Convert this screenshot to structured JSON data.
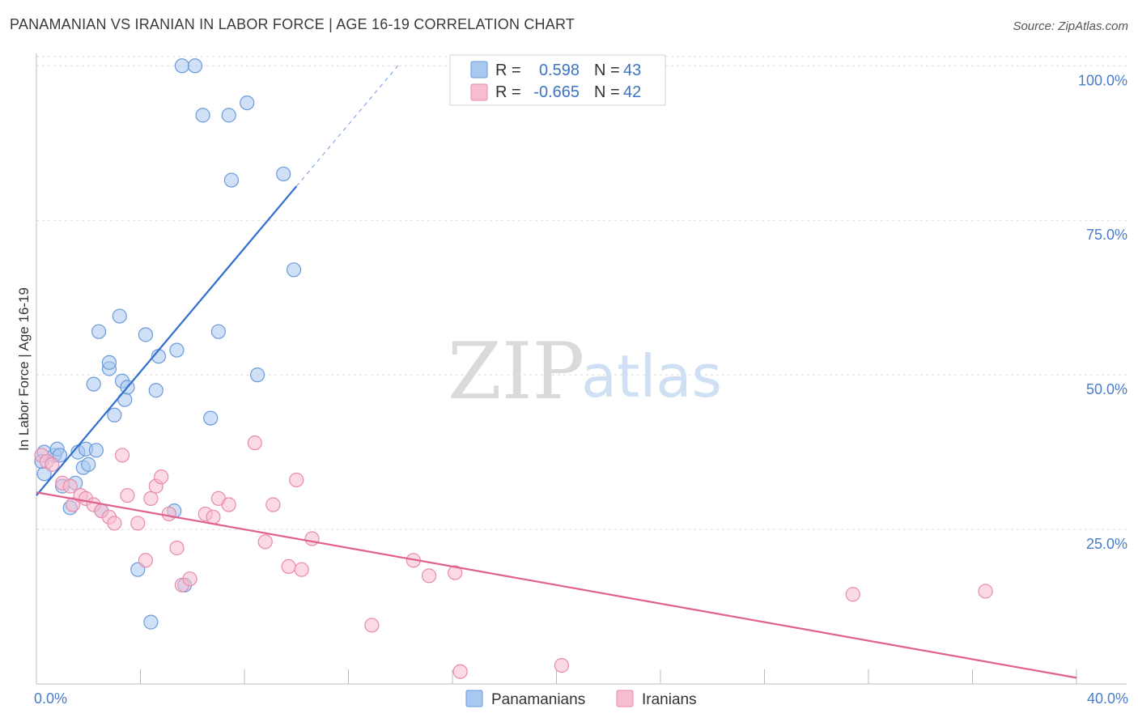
{
  "title": "PANAMANIAN VS IRANIAN IN LABOR FORCE | AGE 16-19 CORRELATION CHART",
  "source": "Source: ZipAtlas.com",
  "colors": {
    "panamanian_fill": "#a9c8f0",
    "panamanian_stroke": "#6a9ad8",
    "panamanian_line": "#2f6fcf",
    "iranian_fill": "#f7bcd0",
    "iranian_stroke": "#e88aaa",
    "iranian_line": "#e0608e",
    "tick_label": "#4a7cc9",
    "grid": "#d9d9d9"
  },
  "legend": {
    "rows": [
      {
        "series": "panamanian",
        "r_label": "R =",
        "r_value": "0.598",
        "n_label": "N =",
        "n_value": "43"
      },
      {
        "series": "iranian",
        "r_label": "R =",
        "r_value": "-0.665",
        "n_label": "N =",
        "n_value": "42"
      }
    ]
  },
  "watermark": {
    "zip": "ZIP",
    "atlas": "atlas"
  },
  "chart_data": {
    "type": "scatter",
    "title": "PANAMANIAN VS IRANIAN IN LABOR FORCE | AGE 16-19 CORRELATION CHART",
    "xlabel": "",
    "ylabel": "In Labor Force | Age 16-19",
    "xlim": [
      0,
      40
    ],
    "ylim": [
      0,
      102
    ],
    "x_tick_labels": {
      "left": "0.0%",
      "right": "40.0%"
    },
    "y_ticks": [
      {
        "value": 100,
        "label": "100.0%"
      },
      {
        "value": 75,
        "label": "75.0%"
      },
      {
        "value": 50,
        "label": "50.0%"
      },
      {
        "value": 25,
        "label": "25.0%"
      }
    ],
    "series": [
      {
        "name": "Panamanians",
        "key": "panamanian",
        "trend": {
          "x0": 0,
          "y0": 30.5,
          "x1": 10.0,
          "y1": 80.5,
          "dash_to_x": 14.0,
          "dash_to_y": 100.5
        },
        "points": [
          [
            0.3,
            37.5
          ],
          [
            0.3,
            34.0
          ],
          [
            0.7,
            37.0
          ],
          [
            0.8,
            38.0
          ],
          [
            0.9,
            37.0
          ],
          [
            1.0,
            32.0
          ],
          [
            1.3,
            28.5
          ],
          [
            1.5,
            32.5
          ],
          [
            1.6,
            37.5
          ],
          [
            1.8,
            35.0
          ],
          [
            1.9,
            38.0
          ],
          [
            2.0,
            35.5
          ],
          [
            2.2,
            48.5
          ],
          [
            2.3,
            37.8
          ],
          [
            2.4,
            57.0
          ],
          [
            2.5,
            28.0
          ],
          [
            2.8,
            51.0
          ],
          [
            2.8,
            52.0
          ],
          [
            3.0,
            43.5
          ],
          [
            3.2,
            59.5
          ],
          [
            3.3,
            49.0
          ],
          [
            3.4,
            46.0
          ],
          [
            3.5,
            48.0
          ],
          [
            3.9,
            18.5
          ],
          [
            4.2,
            56.5
          ],
          [
            4.4,
            10.0
          ],
          [
            4.6,
            47.5
          ],
          [
            4.7,
            53.0
          ],
          [
            5.3,
            28.0
          ],
          [
            5.4,
            54.0
          ],
          [
            5.7,
            16.0
          ],
          [
            5.6,
            100.0
          ],
          [
            6.1,
            100.0
          ],
          [
            6.4,
            92.0
          ],
          [
            6.7,
            43.0
          ],
          [
            7.0,
            57.0
          ],
          [
            7.4,
            92.0
          ],
          [
            7.5,
            81.5
          ],
          [
            8.1,
            94.0
          ],
          [
            8.5,
            50.0
          ],
          [
            9.5,
            82.5
          ],
          [
            9.9,
            67.0
          ],
          [
            0.2,
            36.0
          ]
        ]
      },
      {
        "name": "Iranians",
        "key": "iranian",
        "trend": {
          "x0": 0,
          "y0": 31.0,
          "x1": 40,
          "y1": 1.0
        },
        "points": [
          [
            0.2,
            37.0
          ],
          [
            0.4,
            36.0
          ],
          [
            0.6,
            35.5
          ],
          [
            1.0,
            32.5
          ],
          [
            1.3,
            32.0
          ],
          [
            1.4,
            29.0
          ],
          [
            1.7,
            30.5
          ],
          [
            1.9,
            30.0
          ],
          [
            2.2,
            29.0
          ],
          [
            2.5,
            28.0
          ],
          [
            2.8,
            27.0
          ],
          [
            3.0,
            26.0
          ],
          [
            3.3,
            37.0
          ],
          [
            3.5,
            30.5
          ],
          [
            3.9,
            26.0
          ],
          [
            4.2,
            20.0
          ],
          [
            4.4,
            30.0
          ],
          [
            4.6,
            32.0
          ],
          [
            4.8,
            33.5
          ],
          [
            5.1,
            27.5
          ],
          [
            5.4,
            22.0
          ],
          [
            5.6,
            16.0
          ],
          [
            5.9,
            17.0
          ],
          [
            6.5,
            27.5
          ],
          [
            6.8,
            27.0
          ],
          [
            7.0,
            30.0
          ],
          [
            7.4,
            29.0
          ],
          [
            8.4,
            39.0
          ],
          [
            8.8,
            23.0
          ],
          [
            9.1,
            29.0
          ],
          [
            9.7,
            19.0
          ],
          [
            10.0,
            33.0
          ],
          [
            10.2,
            18.5
          ],
          [
            10.6,
            23.5
          ],
          [
            12.9,
            9.5
          ],
          [
            14.5,
            20.0
          ],
          [
            15.1,
            17.5
          ],
          [
            16.1,
            18.0
          ],
          [
            16.3,
            2.0
          ],
          [
            20.2,
            3.0
          ],
          [
            31.4,
            14.5
          ],
          [
            36.5,
            15.0
          ]
        ]
      }
    ]
  }
}
